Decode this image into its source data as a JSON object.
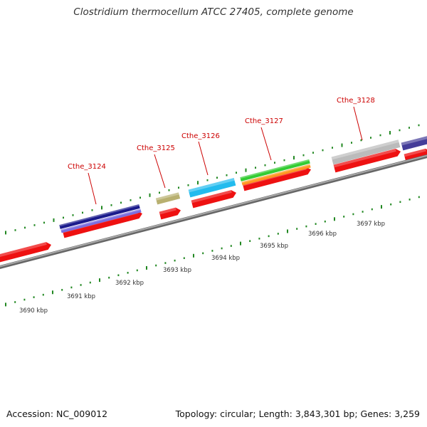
{
  "title": "Clostridium thermocellum ATCC 27405, complete genome",
  "footer": {
    "accession": "Accession: NC_009012",
    "summary": "Topology: circular; Length: 3,843,301 bp; Genes: 3,259"
  },
  "genes": [
    {
      "name": "Cthe_3124"
    },
    {
      "name": "Cthe_3125"
    },
    {
      "name": "Cthe_3126"
    },
    {
      "name": "Cthe_3127"
    },
    {
      "name": "Cthe_3128"
    }
  ],
  "ticks": [
    "3690 kbp",
    "3691 kbp",
    "3692 kbp",
    "3693 kbp",
    "3694 kbp",
    "3695 kbp",
    "3696 kbp",
    "3697 kbp"
  ],
  "colors": {
    "cds": "#ee1111",
    "backbone": "#888888",
    "tick": "#228822",
    "label": "#cc0000",
    "navy": "#1a1a8c",
    "violet": "#7a6ee0",
    "khaki": "#b8b070",
    "cyan": "#22bbee",
    "green": "#33cc33",
    "orange": "#ff9922",
    "gray": "#bbbbbb",
    "indigo": "#443d99"
  }
}
